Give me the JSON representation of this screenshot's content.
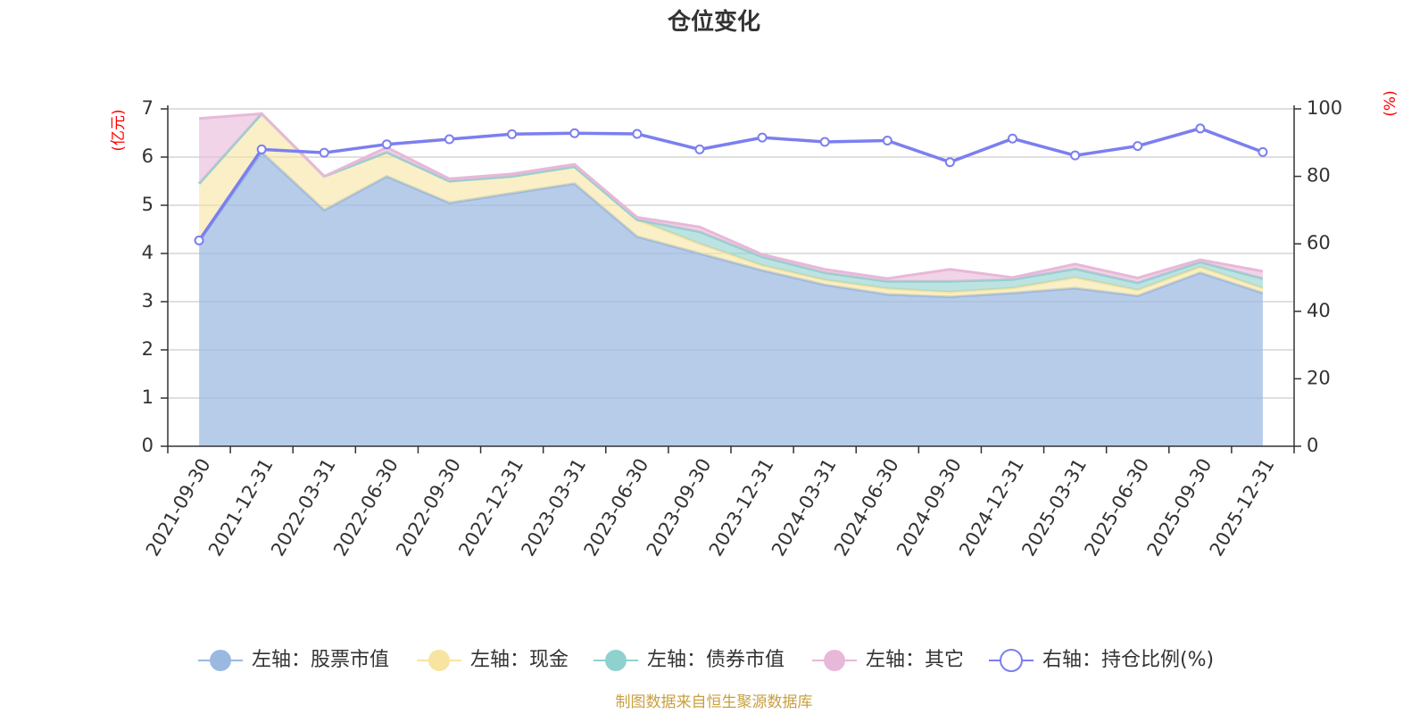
{
  "chart_data": {
    "type": "area",
    "title": "仓位变化",
    "categories": [
      "2021-09-30",
      "2021-12-31",
      "2022-03-31",
      "2022-06-30",
      "2022-09-30",
      "2022-12-31",
      "2023-03-31",
      "2023-06-30",
      "2023-09-30",
      "2023-12-31",
      "2024-03-31",
      "2024-06-30",
      "2024-09-30",
      "2024-12-31",
      "2025-03-31",
      "2025-06-30",
      "2025-09-30",
      "2025-12-31"
    ],
    "left_axis": {
      "unit": "(亿元)",
      "ylim": [
        0,
        7
      ],
      "ticks": [
        "0",
        "1",
        "2",
        "3",
        "4",
        "5",
        "6",
        "7"
      ]
    },
    "right_axis": {
      "unit": "(%)",
      "ylim": [
        0,
        100
      ],
      "ticks": [
        "0",
        "20",
        "40",
        "60",
        "80",
        "100"
      ]
    },
    "stacked": true,
    "series": [
      {
        "name": "左轴：股票市值",
        "axis": "left",
        "type": "area",
        "color": "#9bb8e0",
        "values": [
          4.25,
          6.1,
          4.9,
          5.6,
          5.05,
          5.25,
          5.45,
          4.35,
          4.0,
          3.65,
          3.35,
          3.15,
          3.1,
          3.18,
          3.28,
          3.12,
          3.6,
          3.18
        ]
      },
      {
        "name": "左轴：现金",
        "axis": "left",
        "type": "area",
        "color": "#f7e4a0",
        "values": [
          1.2,
          0.8,
          0.7,
          0.5,
          0.45,
          0.35,
          0.35,
          0.35,
          0.2,
          0.1,
          0.1,
          0.12,
          0.1,
          0.1,
          0.22,
          0.12,
          0.12,
          0.1
        ]
      },
      {
        "name": "左轴：债券市值",
        "axis": "left",
        "type": "area",
        "color": "#8fd1cf",
        "values": [
          0,
          0,
          0,
          0,
          0,
          0,
          0,
          0,
          0.25,
          0.18,
          0.15,
          0.15,
          0.22,
          0.18,
          0.18,
          0.15,
          0.1,
          0.2
        ]
      },
      {
        "name": "左轴：其它",
        "axis": "left",
        "type": "area",
        "color": "#e8b8d8",
        "values": [
          1.35,
          0,
          0,
          0.1,
          0.05,
          0.05,
          0.05,
          0.05,
          0.1,
          0.05,
          0.07,
          0.06,
          0.25,
          0.04,
          0.1,
          0.1,
          0.05,
          0.15
        ]
      },
      {
        "name": "右轴：持仓比例(%)",
        "axis": "right",
        "type": "line",
        "color": "#7b7fef",
        "values": [
          61,
          88,
          87,
          89.5,
          91,
          92.5,
          92.8,
          92.6,
          88,
          91.5,
          90.2,
          90.6,
          84.2,
          91.2,
          86.2,
          89,
          94.2,
          87.2
        ]
      }
    ],
    "legend_position": "bottom",
    "source_note": "制图数据来自恒生聚源数据库"
  }
}
